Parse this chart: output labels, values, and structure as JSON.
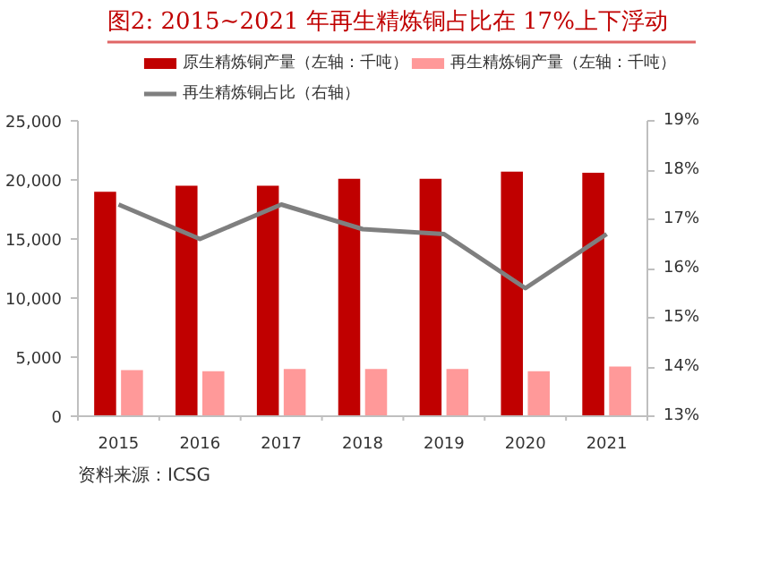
{
  "chart_data": {
    "type": "bar",
    "title": "图2:   2015~2021 年再生精炼铜占比在 17%上下浮动",
    "categories": [
      "2015",
      "2016",
      "2017",
      "2018",
      "2019",
      "2020",
      "2021"
    ],
    "series": [
      {
        "name": "原生精炼铜产量（左轴：千吨）",
        "color": "#c00000",
        "values": [
          19000,
          19500,
          19500,
          20100,
          20100,
          20700,
          20600
        ]
      },
      {
        "name": "再生精炼铜产量（左轴：千吨）",
        "color": "#ff9999",
        "values": [
          3900,
          3800,
          4000,
          4000,
          4000,
          3800,
          4200
        ]
      },
      {
        "name": "再生精炼铜占比（右轴）",
        "type": "line",
        "axis": "y2",
        "color": "#7f7f7f",
        "values": [
          17.3,
          16.6,
          17.3,
          16.8,
          16.7,
          15.6,
          16.7
        ]
      }
    ],
    "ylim": [
      0,
      25000
    ],
    "yticks": [
      {
        "value": 0,
        "label": "0"
      },
      {
        "value": 5000,
        "label": "5,000"
      },
      {
        "value": 10000,
        "label": "10,000"
      },
      {
        "value": 15000,
        "label": "15,000"
      },
      {
        "value": 20000,
        "label": "20,000"
      },
      {
        "value": 25000,
        "label": "25,000"
      }
    ],
    "y2lim": [
      13,
      19
    ],
    "y2ticks": [
      {
        "value": 13,
        "label": "13%"
      },
      {
        "value": 14,
        "label": "14%"
      },
      {
        "value": 15,
        "label": "15%"
      },
      {
        "value": 16,
        "label": "16%"
      },
      {
        "value": 17,
        "label": "17%"
      },
      {
        "value": 18,
        "label": "18%"
      },
      {
        "value": 19,
        "label": "19%"
      }
    ],
    "grid": false,
    "legend": "top",
    "line_style": "solid",
    "marker": "none",
    "annotations": [
      "资料来源：ICSG"
    ]
  }
}
